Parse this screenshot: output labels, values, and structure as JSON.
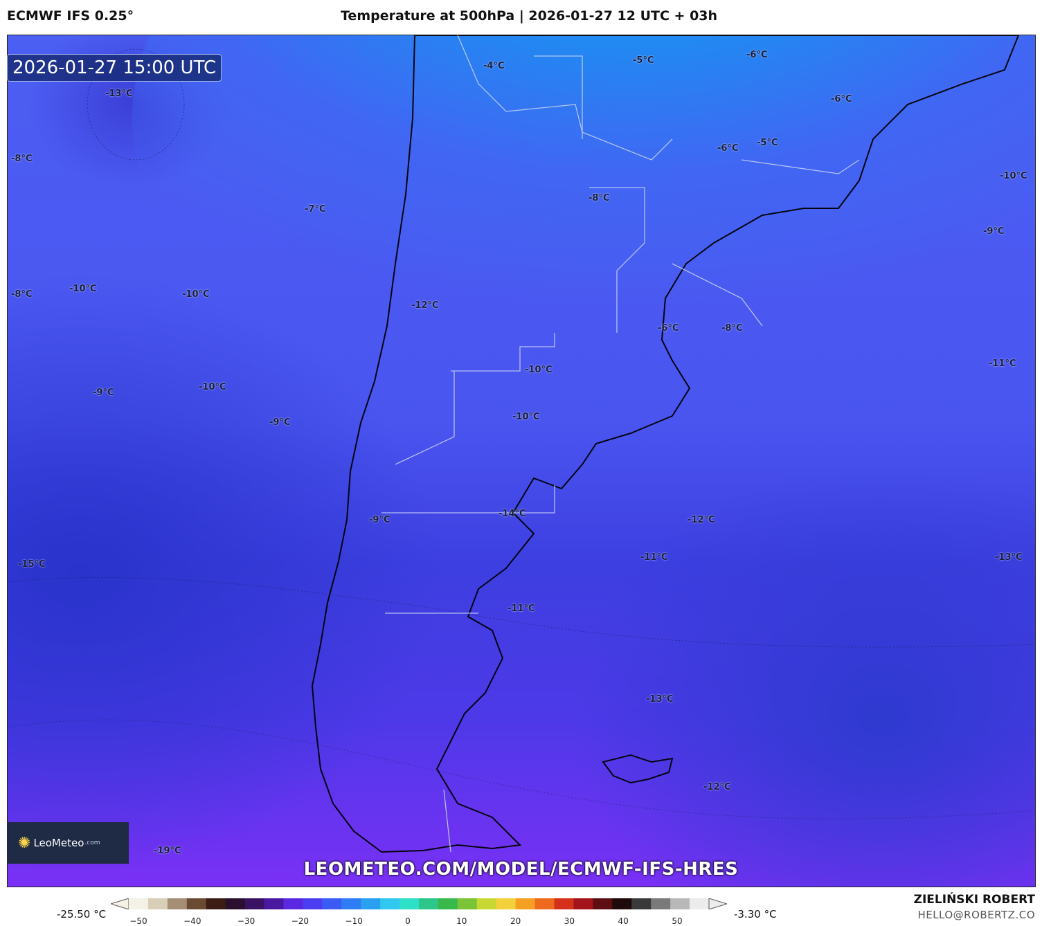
{
  "header": {
    "model": "ECMWF IFS 0.25°",
    "title": "Temperature at 500hPa | 2026-01-27 12 UTC + 03h"
  },
  "map": {
    "valid_time": "2026-01-27 15:00 UTC",
    "region": "Southern South America",
    "temperature_labels": [
      "-13°C",
      "-8°C",
      "-7°C",
      "-8°C",
      "-10°C",
      "-10°C",
      "-9°C",
      "-10°C",
      "-9°C",
      "-15°C",
      "-19°C",
      "-4°C",
      "-5°C",
      "-6°C",
      "-6°C",
      "-6°C",
      "-5°C",
      "-10°C",
      "-9°C",
      "-8°C",
      "-12°C",
      "-6°C",
      "-8°C",
      "-10°C",
      "-10°C",
      "-11°C",
      "-9°C",
      "-14°C",
      "-12°C",
      "-11°C",
      "-13°C",
      "-11°C",
      "-13°C",
      "-12°C"
    ]
  },
  "branding": {
    "logo_text": "LeoMeteo",
    "logo_domain": ".com",
    "url": "LEOMETEO.COM/MODEL/ECMWF-IFS-HRES"
  },
  "colorbar": {
    "min_label": "-25.50 °C",
    "max_label": "-3.30 °C",
    "ticks": [
      "−50",
      "−40",
      "−30",
      "−20",
      "−10",
      "0",
      "10",
      "20",
      "30",
      "40",
      "50"
    ],
    "colors": [
      "#f4f1e6",
      "#d9cfb8",
      "#a48e74",
      "#6b4a33",
      "#3c1c14",
      "#2a0f2f",
      "#3a1264",
      "#4a18a0",
      "#5a28e0",
      "#4a3df0",
      "#3a5cf5",
      "#2f7df5",
      "#2aa0f0",
      "#30c8f0",
      "#2fe0c8",
      "#2dc78a",
      "#39b84c",
      "#7cc437",
      "#c8d832",
      "#f2d13a",
      "#f5a023",
      "#ee6a1c",
      "#d4301a",
      "#a3131a",
      "#5e0d12",
      "#1e0a0a",
      "#3a3a3a",
      "#7a7a7a",
      "#b8b8b8",
      "#ececec"
    ]
  },
  "author": {
    "name": "ZIELIŃSKI ROBERT",
    "email": "HELLO@ROBERTZ.CO"
  }
}
